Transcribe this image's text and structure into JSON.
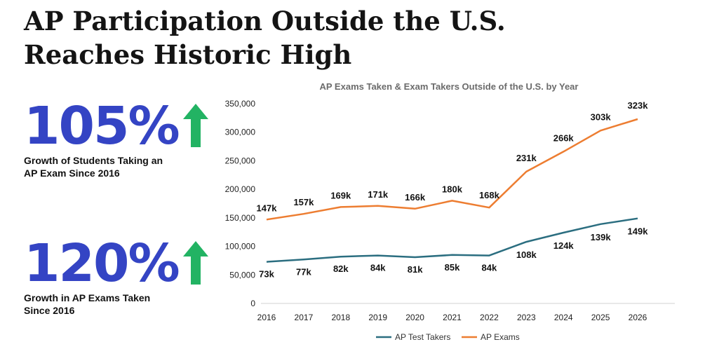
{
  "headline": "AP Participation Outside the U.S. Reaches Historic High",
  "stats": [
    {
      "value": "105%",
      "caption_line1": "Growth of Students Taking an",
      "caption_line2": "AP Exam Since 2016",
      "icon": "arrow-up-icon"
    },
    {
      "value": "120%",
      "caption_line1": "Growth in AP Exams Taken",
      "caption_line2": "Since 2016",
      "icon": "arrow-up-icon"
    }
  ],
  "colors": {
    "accent": "#3444c4",
    "arrow": "#22b363",
    "test_takers": "#2b6e80",
    "exams": "#ed7d31"
  },
  "chart_data": {
    "type": "line",
    "title": "AP Exams Taken & Exam Takers Outside of the U.S. by Year",
    "x": [
      "2016",
      "2017",
      "2018",
      "2019",
      "2020",
      "2021",
      "2022",
      "2023",
      "2024",
      "2025",
      "2026"
    ],
    "yticks": [
      "0",
      "50,000",
      "100,000",
      "150,000",
      "200,000",
      "250,000",
      "300,000",
      "350,000"
    ],
    "ylim": [
      0,
      350000
    ],
    "grid": false,
    "legend": "bottom",
    "series": [
      {
        "name": "AP Test Takers",
        "color": "#2b6e80",
        "values": [
          73000,
          77000,
          82000,
          84000,
          81000,
          85000,
          84000,
          108000,
          124000,
          139000,
          149000
        ],
        "labels": [
          "73k",
          "77k",
          "82k",
          "84k",
          "81k",
          "85k",
          "84k",
          "108k",
          "124k",
          "139k",
          "149k"
        ]
      },
      {
        "name": "AP Exams",
        "color": "#ed7d31",
        "values": [
          147000,
          157000,
          169000,
          171000,
          166000,
          180000,
          168000,
          231000,
          266000,
          303000,
          323000
        ],
        "labels": [
          "147k",
          "157k",
          "169k",
          "171k",
          "166k",
          "180k",
          "168k",
          "231k",
          "266k",
          "303k",
          "323k"
        ]
      }
    ]
  }
}
